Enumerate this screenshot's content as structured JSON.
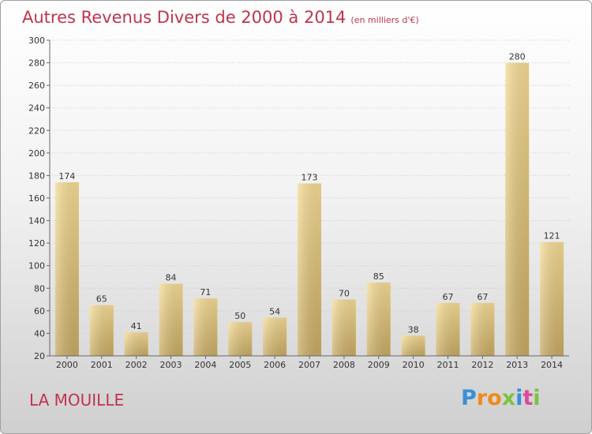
{
  "chart_data": {
    "type": "bar",
    "title": "Autres Revenus Divers de 2000 à 2014",
    "unit_note": "(en milliers d'€)",
    "categories": [
      "2000",
      "2001",
      "2002",
      "2003",
      "2004",
      "2005",
      "2006",
      "2007",
      "2008",
      "2009",
      "2010",
      "2011",
      "2012",
      "2013",
      "2014"
    ],
    "values": [
      174,
      65,
      41,
      84,
      71,
      50,
      54,
      173,
      70,
      85,
      38,
      67,
      67,
      280,
      121
    ],
    "ylim": [
      20,
      300
    ],
    "yticks": [
      20,
      40,
      60,
      80,
      100,
      120,
      140,
      160,
      180,
      200,
      220,
      240,
      260,
      280,
      300
    ],
    "grid": true,
    "bar_color": "#e8cc80"
  },
  "commune": "LA MOUILLE",
  "logo": {
    "letters": [
      "P",
      "r",
      "o",
      "x",
      "i",
      "t",
      "i"
    ],
    "colors": [
      "#3a8fd8",
      "#f08a1c",
      "#f08a1c",
      "#7cc242",
      "#3a8fd8",
      "#d94a9c",
      "#7cc242"
    ]
  }
}
